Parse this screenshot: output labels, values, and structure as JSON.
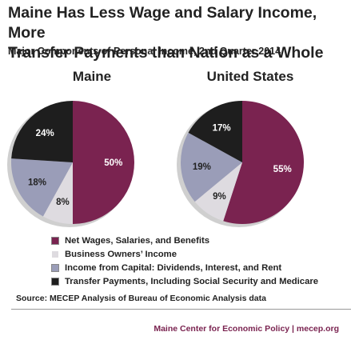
{
  "title_line1": "Maine Has Less Wage and Salary Income, More",
  "title_line2": "Transfer Payments than Nation as a Whole",
  "subtitle": "Major Components of Personal Income, 2nd Quarter 2014",
  "colors": {
    "wages": "#7a2350",
    "business": "#dedbe0",
    "capital": "#9a9db8",
    "transfer": "#1e1e1e"
  },
  "chart_data": [
    {
      "type": "pie",
      "title": "Maine",
      "slices": [
        {
          "key": "wages",
          "value": 50,
          "label": "50%"
        },
        {
          "key": "business",
          "value": 8,
          "label": "8%"
        },
        {
          "key": "capital",
          "value": 18,
          "label": "18%"
        },
        {
          "key": "transfer",
          "value": 24,
          "label": "24%"
        }
      ]
    },
    {
      "type": "pie",
      "title": "United States",
      "slices": [
        {
          "key": "wages",
          "value": 55,
          "label": "55%"
        },
        {
          "key": "business",
          "value": 9,
          "label": "9%"
        },
        {
          "key": "capital",
          "value": 19,
          "label": "19%"
        },
        {
          "key": "transfer",
          "value": 17,
          "label": "17%"
        }
      ]
    }
  ],
  "legend": [
    {
      "key": "wages",
      "label": "Net Wages, Salaries, and Benefits"
    },
    {
      "key": "business",
      "label": "Business Owners’ Income"
    },
    {
      "key": "capital",
      "label": "Income from Capital: Dividends, Interest, and Rent"
    },
    {
      "key": "transfer",
      "label": "Transfer Payments, Including Social Security and Medicare"
    }
  ],
  "source": "Source: MECEP Analysis of Bureau of Economic Analysis data",
  "footer": "Maine Center for Economic Policy | mecep.org"
}
